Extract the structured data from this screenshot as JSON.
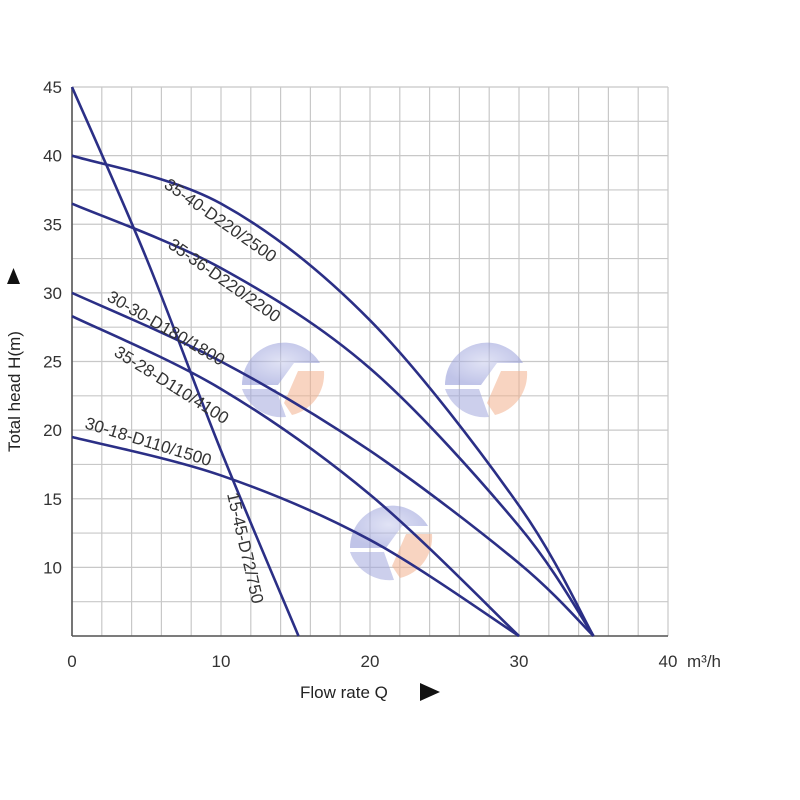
{
  "chart_data": {
    "type": "line",
    "xlabel": "Flow rate Q",
    "ylabel": "Total head H(m)",
    "x_unit": "m³/h",
    "xlim": [
      0,
      40
    ],
    "ylim": [
      5,
      45
    ],
    "x_ticks": [
      "0",
      "10",
      "20",
      "30",
      "40"
    ],
    "y_ticks": [
      "10",
      "15",
      "20",
      "25",
      "30",
      "35",
      "40",
      "45"
    ],
    "grid": true,
    "series": [
      {
        "name": "35-40-D220/2500",
        "x": [
          0,
          10,
          20,
          30,
          35
        ],
        "y": [
          40,
          36.5,
          28,
          14.5,
          5
        ]
      },
      {
        "name": "35-36-D220/2200",
        "x": [
          0,
          10,
          20,
          30,
          35
        ],
        "y": [
          36.5,
          31.8,
          24.5,
          13,
          5
        ]
      },
      {
        "name": "30-30-D180/1800",
        "x": [
          0,
          10,
          20,
          30,
          35
        ],
        "y": [
          30,
          25,
          18.5,
          10.3,
          5
        ]
      },
      {
        "name": "35-28-D110/4100",
        "x": [
          0,
          10,
          20,
          30
        ],
        "y": [
          28.3,
          23,
          15.3,
          5
        ]
      },
      {
        "name": "30-18-D110/1500",
        "x": [
          0,
          10,
          20,
          30
        ],
        "y": [
          19.5,
          16.7,
          12,
          5
        ]
      },
      {
        "name": "15-45-D72/750",
        "x": [
          0,
          5,
          10,
          15.2
        ],
        "y": [
          45,
          32.5,
          18.5,
          5
        ]
      }
    ]
  }
}
